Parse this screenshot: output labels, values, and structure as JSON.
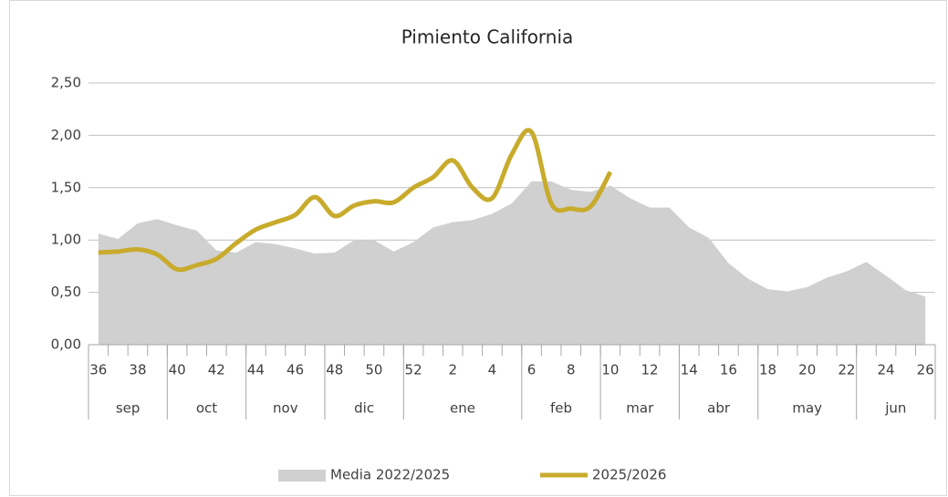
{
  "chart_data": {
    "type": "area_line",
    "title": "Pimiento California",
    "categories": [
      "36",
      null,
      "38",
      null,
      "40",
      null,
      "42",
      null,
      "44",
      null,
      "46",
      null,
      "48",
      null,
      "50",
      null,
      "52",
      null,
      "2",
      null,
      "4",
      null,
      "6",
      null,
      "8",
      null,
      "10",
      null,
      "12",
      null,
      "14",
      null,
      "16",
      null,
      "18",
      null,
      "20",
      null,
      "22",
      null,
      "24",
      null,
      "26"
    ],
    "months": [
      "sep",
      null,
      null,
      null,
      "oct",
      null,
      null,
      null,
      "nov",
      null,
      null,
      null,
      "dic",
      null,
      null,
      null,
      "ene",
      null,
      null,
      null,
      null,
      null,
      "feb",
      null,
      null,
      null,
      "mar",
      null,
      null,
      null,
      "abr",
      null,
      null,
      null,
      "may",
      null,
      null,
      null,
      null,
      "jun",
      null,
      null,
      null
    ],
    "series": [
      {
        "name": "Media 2022/2025",
        "type": "area",
        "color": "#d0d0d0",
        "values": [
          1.06,
          1.01,
          1.16,
          1.2,
          1.14,
          1.09,
          0.9,
          0.88,
          0.98,
          0.96,
          0.92,
          0.87,
          0.88,
          1.0,
          1.0,
          0.89,
          0.98,
          1.12,
          1.17,
          1.19,
          1.25,
          1.35,
          1.56,
          1.56,
          1.48,
          1.46,
          1.52,
          1.4,
          1.31,
          1.31,
          1.12,
          1.02,
          0.78,
          0.63,
          0.53,
          0.51,
          0.55,
          0.64,
          0.7,
          0.79,
          0.66,
          0.52,
          0.46
        ]
      },
      {
        "name": "2025/2026",
        "type": "line",
        "color": "#c8ab2c",
        "values": [
          0.88,
          0.89,
          0.91,
          0.86,
          0.72,
          0.76,
          0.82,
          0.97,
          1.1,
          1.17,
          1.24,
          1.41,
          1.23,
          1.33,
          1.37,
          1.36,
          1.5,
          1.6,
          1.76,
          1.5,
          1.4,
          1.82,
          2.03,
          1.35,
          1.3,
          1.32,
          1.65,
          null,
          null,
          null,
          null,
          null,
          null,
          null,
          null,
          null,
          null,
          null,
          null,
          null,
          null,
          null,
          null
        ]
      }
    ],
    "ylim": [
      0,
      2.5
    ],
    "yticks": [
      {
        "value": 0,
        "label": "0,00"
      },
      {
        "value": 0.5,
        "label": "0,50"
      },
      {
        "value": 1,
        "label": "1,00"
      },
      {
        "value": 1.5,
        "label": "1,50"
      },
      {
        "value": 2,
        "label": "2,00"
      },
      {
        "value": 2.5,
        "label": "2,50"
      }
    ],
    "grid": true,
    "legend": "bottom"
  }
}
